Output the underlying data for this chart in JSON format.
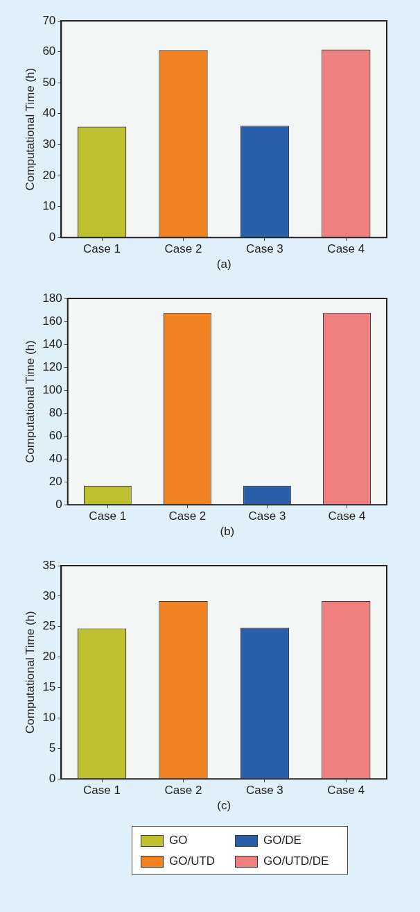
{
  "chart_data": [
    {
      "type": "bar",
      "categories": [
        "Case 1",
        "Case 2",
        "Case 3",
        "Case 4"
      ],
      "values": [
        35.8,
        60.5,
        36.1,
        60.7
      ],
      "colors": [
        "#bfc02f",
        "#f18221",
        "#2a5fa9",
        "#f07f80"
      ],
      "xlabel": "(a)",
      "ylabel": "Computational Time (h)",
      "ylim": [
        0,
        70
      ],
      "yticks": [
        0,
        10,
        20,
        30,
        40,
        50,
        60,
        70
      ]
    },
    {
      "type": "bar",
      "categories": [
        "Case 1",
        "Case 2",
        "Case 3",
        "Case 4"
      ],
      "values": [
        16.5,
        167.5,
        16.5,
        167.5
      ],
      "colors": [
        "#bfc02f",
        "#f18221",
        "#2a5fa9",
        "#f07f80"
      ],
      "xlabel": "(b)",
      "ylabel": "Computational Time (h)",
      "ylim": [
        0,
        180
      ],
      "yticks": [
        0,
        20,
        40,
        60,
        80,
        100,
        120,
        140,
        160,
        180
      ]
    },
    {
      "type": "bar",
      "categories": [
        "Case 1",
        "Case 2",
        "Case 3",
        "Case 4"
      ],
      "series": [
        {
          "name": "GO",
          "color": "#bfc02f",
          "values": [
            24.7,
            null,
            null,
            null
          ]
        },
        {
          "name": "GO/UTD",
          "color": "#f18221",
          "values": [
            null,
            29.2,
            null,
            null
          ]
        },
        {
          "name": "GO/DE",
          "color": "#2a5fa9",
          "values": [
            null,
            null,
            24.8,
            null
          ]
        },
        {
          "name": "GO/UTD/DE",
          "color": "#f07f80",
          "values": [
            null,
            null,
            null,
            29.2
          ]
        }
      ],
      "xlabel": "(c)",
      "ylabel": "Computational Time (h)",
      "ylim": [
        0,
        35
      ],
      "yticks": [
        0,
        5,
        10,
        15,
        20,
        25,
        30,
        35
      ],
      "legend": "bottom"
    }
  ]
}
